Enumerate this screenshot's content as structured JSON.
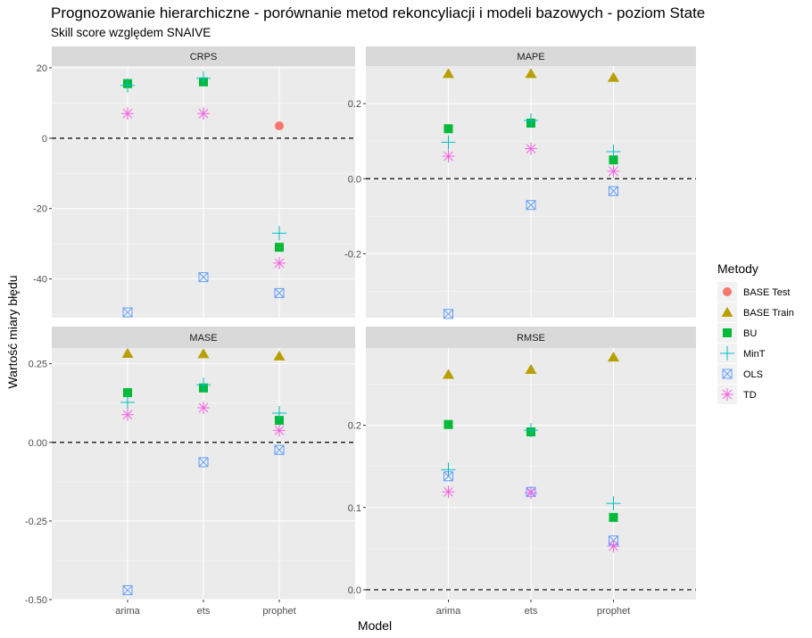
{
  "title": "Prognozowanie hierarchiczne - porównanie metod rekoncyliacji i modeli bazowych - poziom State",
  "subtitle": "Skill score względem SNAIVE",
  "chart_data": {
    "type": "scatter",
    "xlabel": "Model",
    "ylabel": "Wartość miary błędu",
    "categories": [
      "arima",
      "ets",
      "prophet"
    ],
    "legend": {
      "title": "Metody",
      "placement": "right",
      "items": [
        {
          "name": "BASE Test",
          "color": "#F8766D",
          "shape": "circle"
        },
        {
          "name": "BASE Train",
          "color": "#B79F00",
          "shape": "triangle"
        },
        {
          "name": "BU",
          "color": "#00BA38",
          "shape": "square"
        },
        {
          "name": "MinT",
          "color": "#00BFC4",
          "shape": "plus"
        },
        {
          "name": "OLS",
          "color": "#619CFF",
          "shape": "square-cross"
        },
        {
          "name": "TD",
          "color": "#F564E3",
          "shape": "asterisk"
        }
      ]
    },
    "panels": [
      {
        "name": "CRPS",
        "ylim": [
          -51,
          20.5
        ],
        "yticks": [
          -40,
          -20,
          0,
          20
        ],
        "ytick_labels": [
          "-40",
          "-20",
          "0",
          "20"
        ],
        "reference_line": 0,
        "series": [
          {
            "name": "BASE Test",
            "values": [
              null,
              null,
              3.5
            ]
          },
          {
            "name": "BASE Train",
            "values": [
              null,
              null,
              null
            ]
          },
          {
            "name": "BU",
            "values": [
              15.5,
              16,
              -31
            ]
          },
          {
            "name": "MinT",
            "values": [
              15,
              17,
              -27
            ]
          },
          {
            "name": "OLS",
            "values": [
              -49.5,
              -39.5,
              -44
            ]
          },
          {
            "name": "TD",
            "values": [
              7,
              7,
              -35.5
            ]
          }
        ]
      },
      {
        "name": "MAPE",
        "ylim": [
          -0.37,
          0.3
        ],
        "yticks": [
          -0.2,
          0.0,
          0.2
        ],
        "ytick_labels": [
          "-0.2",
          "0.0",
          "0.2"
        ],
        "reference_line": 0,
        "series": [
          {
            "name": "BASE Test",
            "values": [
              null,
              null,
              null
            ]
          },
          {
            "name": "BASE Train",
            "values": [
              0.28,
              0.28,
              0.27
            ]
          },
          {
            "name": "BU",
            "values": [
              0.133,
              0.148,
              0.05
            ]
          },
          {
            "name": "MinT",
            "values": [
              0.097,
              0.155,
              0.072
            ]
          },
          {
            "name": "OLS",
            "values": [
              -0.36,
              -0.07,
              -0.033
            ]
          },
          {
            "name": "TD",
            "values": [
              0.06,
              0.08,
              0.02
            ]
          }
        ]
      },
      {
        "name": "MASE",
        "ylim": [
          -0.5,
          0.3
        ],
        "yticks": [
          -0.5,
          -0.25,
          0.0,
          0.25
        ],
        "ytick_labels": [
          "-0.50",
          "-0.25",
          "0.00",
          "0.25"
        ],
        "reference_line": 0,
        "series": [
          {
            "name": "BASE Test",
            "values": [
              null,
              null,
              null
            ]
          },
          {
            "name": "BASE Train",
            "values": [
              0.283,
              0.282,
              0.275
            ]
          },
          {
            "name": "BU",
            "values": [
              0.158,
              0.173,
              0.07
            ]
          },
          {
            "name": "MinT",
            "values": [
              0.127,
              0.183,
              0.093
            ]
          },
          {
            "name": "OLS",
            "values": [
              -0.47,
              -0.063,
              -0.024
            ]
          },
          {
            "name": "TD",
            "values": [
              0.088,
              0.11,
              0.038
            ]
          }
        ]
      },
      {
        "name": "RMSE",
        "ylim": [
          -0.012,
          0.294
        ],
        "yticks": [
          0.0,
          0.1,
          0.2
        ],
        "ytick_labels": [
          "0.0",
          "0.1",
          "0.2"
        ],
        "reference_line": 0,
        "series": [
          {
            "name": "BASE Test",
            "values": [
              null,
              null,
              null
            ]
          },
          {
            "name": "BASE Train",
            "values": [
              0.262,
              0.268,
              0.283
            ]
          },
          {
            "name": "BU",
            "values": [
              0.201,
              0.192,
              0.088
            ]
          },
          {
            "name": "MinT",
            "values": [
              0.146,
              0.194,
              0.105
            ]
          },
          {
            "name": "OLS",
            "values": [
              0.138,
              0.119,
              0.06
            ]
          },
          {
            "name": "TD",
            "values": [
              0.119,
              0.118,
              0.053
            ]
          }
        ]
      }
    ]
  }
}
